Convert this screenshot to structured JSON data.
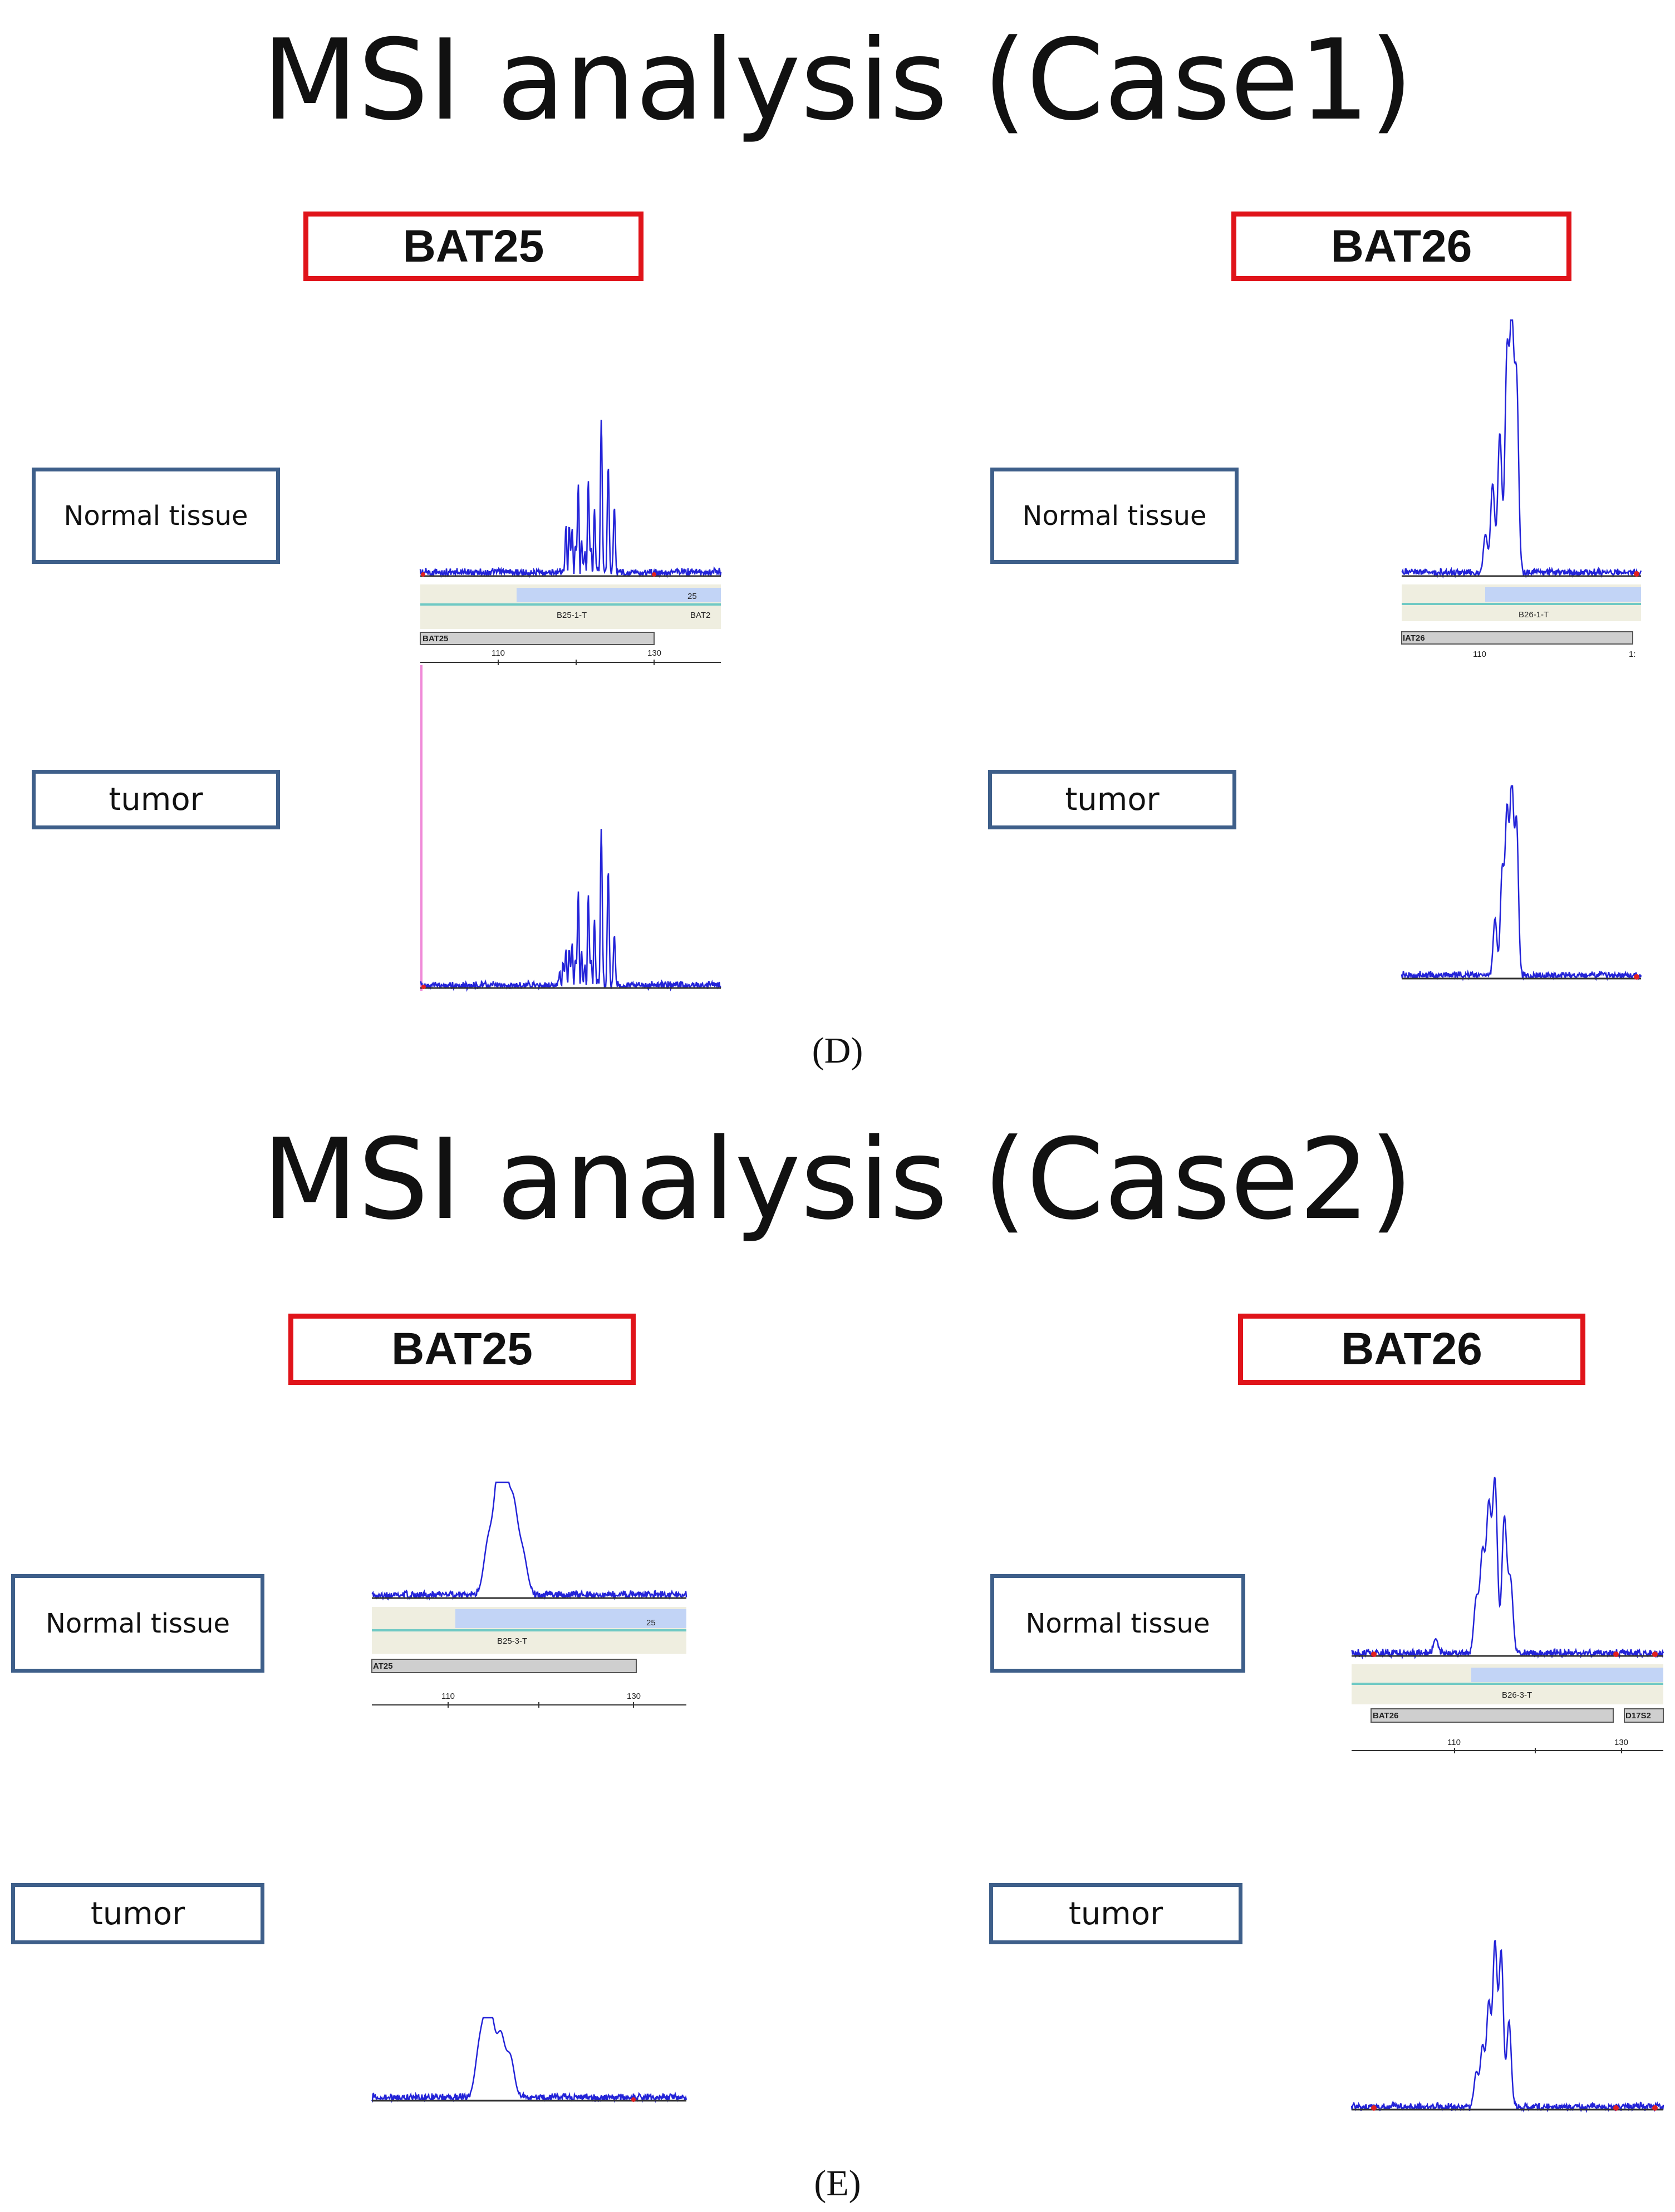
{
  "panels": [
    {
      "title": "MSI analysis (Case1)",
      "caption": "(D)",
      "markers": [
        {
          "name": "BAT25",
          "normal_label": "Normal tissue",
          "tumor_label": "tumor",
          "bin_label": "B25-1-T",
          "bin_label_right": "BAT2",
          "bin_label_right_faded": "25",
          "marker_bar": "BAT25",
          "marker_bar_right": "",
          "ticks": [
            "110",
            "130"
          ]
        },
        {
          "name": "BAT26",
          "normal_label": "Normal tissue",
          "tumor_label": "tumor",
          "bin_label": "B26-1-T",
          "bin_label_right": "",
          "bin_label_right_faded": "",
          "marker_bar": "IAT26",
          "marker_bar_right": "",
          "ticks": [
            "110",
            "1:"
          ]
        }
      ]
    },
    {
      "title": "MSI analysis (Case2)",
      "caption": "(E)",
      "markers": [
        {
          "name": "BAT25",
          "normal_label": "Normal tissue",
          "tumor_label": "tumor",
          "bin_label": "B25-3-T",
          "bin_label_right": "",
          "bin_label_right_faded": "25",
          "marker_bar": "AT25",
          "marker_bar_right": "",
          "ticks": [
            "110",
            "130"
          ]
        },
        {
          "name": "BAT26",
          "normal_label": "Normal tissue",
          "tumor_label": "tumor",
          "bin_label": "B26-3-T",
          "bin_label_right": "",
          "bin_label_right_faded": "",
          "marker_bar": "BAT26",
          "marker_bar_right": "D17S2",
          "ticks": [
            "110",
            "130"
          ]
        }
      ]
    }
  ],
  "colors": {
    "marker_box_border": "#e0141a",
    "label_box_border": "#3e5f8a",
    "trace": "#2323d8",
    "bin_bar": "#c2d4f6",
    "bin_line": "#6fc9c4",
    "size_marker": "#e02020"
  }
}
